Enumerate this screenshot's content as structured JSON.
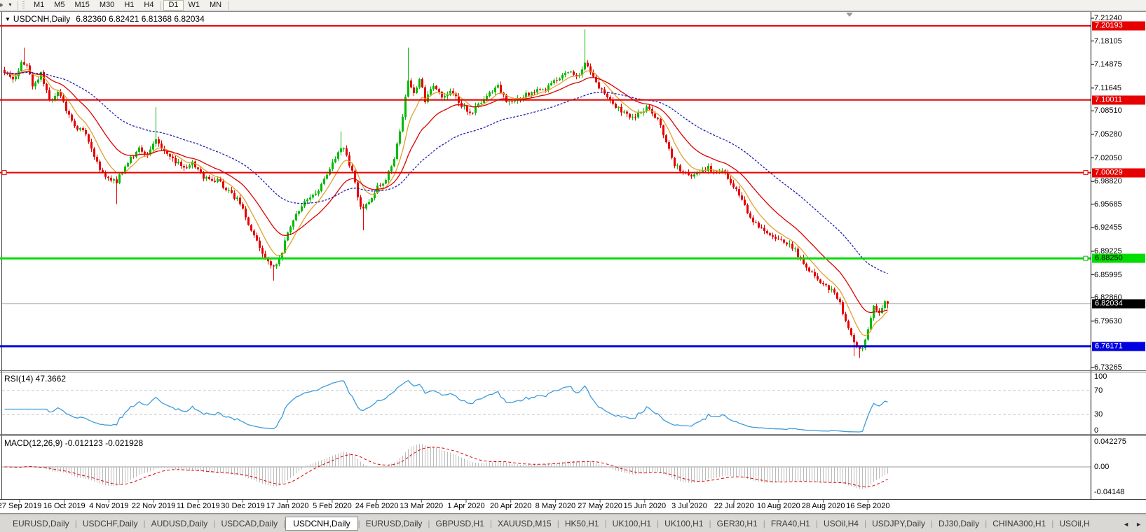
{
  "header": {
    "symbol_period": "USDCNH,Daily",
    "ohlc_text": "6.82360 6.82421 6.81368 6.82034"
  },
  "icons": {
    "collapse": "▼",
    "tool": "+",
    "dropdown": "▼",
    "scroll_left": "◄",
    "scroll_right": "►"
  },
  "toolbar": {
    "timeframes": [
      {
        "label": "M1"
      },
      {
        "label": "M5"
      },
      {
        "label": "M15"
      },
      {
        "label": "M30"
      },
      {
        "label": "H1"
      },
      {
        "label": "H4",
        "sep_after": true
      },
      {
        "label": "D1",
        "active": true
      },
      {
        "label": "W1"
      },
      {
        "label": "MN",
        "sep_after": true
      }
    ]
  },
  "tabs": {
    "active_index": 4,
    "items": [
      "EURUSD,Daily",
      "USDCHF,Daily",
      "AUDUSD,Daily",
      "USDCAD,Daily",
      "USDCNH,Daily",
      "EURUSD,Daily",
      "GBPUSD,H1",
      "XAUUSD,M15",
      "HK50,H1",
      "UK100,H1",
      "UK100,H1",
      "GER30,H1",
      "FRA40,H1",
      "USOil,H4",
      "USDJPY,Daily",
      "DJ30,Daily",
      "CHINA300,H1",
      "USOil,H"
    ]
  },
  "chart_data": {
    "type": "candlestick",
    "symbol": "USDCNH",
    "timeframe": "Daily",
    "ohlc": {
      "open": 6.8236,
      "high": 6.82421,
      "low": 6.81368,
      "close": 6.82034
    },
    "y_axis_ticks": [
      "7.21240",
      "7.18105",
      "7.14875",
      "7.11645",
      "7.08510",
      "7.05280",
      "7.02050",
      "6.98820",
      "6.95685",
      "6.92455",
      "6.89225",
      "6.85995",
      "6.82860",
      "6.79630",
      "6.73265"
    ],
    "x_axis_dates": [
      "27 Sep 2019",
      "16 Oct 2019",
      "4 Nov 2019",
      "22 Nov 2019",
      "11 Dec 2019",
      "30 Dec 2019",
      "17 Jan 2020",
      "5 Feb 2020",
      "24 Feb 2020",
      "13 Mar 2020",
      "1 Apr 2020",
      "20 Apr 2020",
      "8 May 2020",
      "27 May 2020",
      "15 Jun 2020",
      "3 Jul 2020",
      "22 Jul 2020",
      "10 Aug 2020",
      "28 Aug 2020",
      "16 Sep 2020"
    ],
    "price_lines": [
      {
        "value": "7.20193",
        "color": "#e60000",
        "text_color": "#ffffff",
        "width": 2,
        "handles": false
      },
      {
        "value": "7.10011",
        "color": "#e60000",
        "text_color": "#ffffff",
        "width": 2,
        "handles": false
      },
      {
        "value": "7.00029",
        "color": "#e60000",
        "text_color": "#ffffff",
        "width": 2,
        "handles": true
      },
      {
        "value": "6.88250",
        "color": "#00dd00",
        "text_color": "#000000",
        "width": 3,
        "handles": true
      },
      {
        "value": "6.76171",
        "color": "#0000e0",
        "text_color": "#ffffff",
        "width": 3,
        "handles": false
      }
    ],
    "current_price": {
      "value": "6.82034",
      "line_color": "#b0b0b0",
      "box_bg": "#000000",
      "box_fg": "#ffffff"
    },
    "colors": {
      "bull": "#00bb00",
      "bear": "#e60000",
      "ma_fast": "#e0a030",
      "ma_mid": "#dd0000",
      "ma_slow": "#2020b0",
      "rsi_line": "#3e9cdb",
      "macd_hist": "#bbbbbb",
      "macd_signal": "#dd0000"
    },
    "moving_averages": [
      {
        "name": "fast",
        "period": 8
      },
      {
        "name": "mid",
        "period": 21
      },
      {
        "name": "slow",
        "period": 55
      }
    ],
    "indicators": {
      "rsi": {
        "label": "RSI(14) 47.3662",
        "period": 14,
        "value": "47.3662",
        "levels": [
          "100",
          "70",
          "30",
          "0"
        ],
        "level_values": [
          100,
          70,
          30,
          0
        ]
      },
      "macd": {
        "label": "MACD(12,26,9) -0.012123 -0.021928",
        "value_main": "-0.012123",
        "value_signal": "-0.021928",
        "axis": [
          "0.042275",
          "0.00",
          "-0.04148"
        ],
        "axis_values": [
          0.042275,
          0,
          -0.04148
        ]
      }
    },
    "series_anchors": [
      [
        0,
        7.14
      ],
      [
        3,
        7.125
      ],
      [
        6,
        7.15
      ],
      [
        8,
        7.148
      ],
      [
        10,
        7.12
      ],
      [
        13,
        7.135
      ],
      [
        16,
        7.1
      ],
      [
        19,
        7.112
      ],
      [
        22,
        7.088
      ],
      [
        25,
        7.062
      ],
      [
        28,
        7.058
      ],
      [
        31,
        7.035
      ],
      [
        34,
        7.005
      ],
      [
        37,
        6.992
      ],
      [
        40,
        6.988
      ],
      [
        43,
        7.008
      ],
      [
        46,
        7.025
      ],
      [
        48,
        7.035
      ],
      [
        51,
        7.026
      ],
      [
        54,
        7.048
      ],
      [
        57,
        7.03
      ],
      [
        60,
        7.018
      ],
      [
        64,
        7.006
      ],
      [
        67,
        7.014
      ],
      [
        70,
        6.998
      ],
      [
        73,
        6.99
      ],
      [
        76,
        6.988
      ],
      [
        80,
        6.975
      ],
      [
        83,
        6.963
      ],
      [
        86,
        6.94
      ],
      [
        89,
        6.913
      ],
      [
        92,
        6.888
      ],
      [
        95,
        6.87
      ],
      [
        98,
        6.88
      ],
      [
        101,
        6.918
      ],
      [
        104,
        6.945
      ],
      [
        107,
        6.958
      ],
      [
        110,
        6.97
      ],
      [
        113,
        6.982
      ],
      [
        116,
        7.008
      ],
      [
        119,
        7.028
      ],
      [
        121,
        7.035
      ],
      [
        124,
        7.002
      ],
      [
        127,
        6.95
      ],
      [
        130,
        6.962
      ],
      [
        133,
        6.98
      ],
      [
        136,
        6.992
      ],
      [
        139,
        7.02
      ],
      [
        142,
        7.08
      ],
      [
        144,
        7.13
      ],
      [
        146,
        7.108
      ],
      [
        148,
        7.128
      ],
      [
        150,
        7.1
      ],
      [
        153,
        7.118
      ],
      [
        156,
        7.105
      ],
      [
        160,
        7.112
      ],
      [
        163,
        7.092
      ],
      [
        166,
        7.082
      ],
      [
        169,
        7.092
      ],
      [
        172,
        7.104
      ],
      [
        176,
        7.118
      ],
      [
        179,
        7.1
      ],
      [
        182,
        7.098
      ],
      [
        185,
        7.106
      ],
      [
        188,
        7.11
      ],
      [
        192,
        7.114
      ],
      [
        195,
        7.122
      ],
      [
        198,
        7.132
      ],
      [
        201,
        7.14
      ],
      [
        204,
        7.13
      ],
      [
        207,
        7.152
      ],
      [
        209,
        7.14
      ],
      [
        212,
        7.118
      ],
      [
        215,
        7.105
      ],
      [
        218,
        7.092
      ],
      [
        221,
        7.082
      ],
      [
        224,
        7.076
      ],
      [
        227,
        7.086
      ],
      [
        230,
        7.09
      ],
      [
        233,
        7.072
      ],
      [
        236,
        7.045
      ],
      [
        239,
        7.012
      ],
      [
        242,
        7.0
      ],
      [
        245,
        6.996
      ],
      [
        248,
        7.0
      ],
      [
        251,
        7.006
      ],
      [
        254,
        7.002
      ],
      [
        257,
        7.0
      ],
      [
        260,
        6.982
      ],
      [
        263,
        6.96
      ],
      [
        266,
        6.94
      ],
      [
        269,
        6.926
      ],
      [
        272,
        6.918
      ],
      [
        275,
        6.912
      ],
      [
        278,
        6.905
      ],
      [
        281,
        6.898
      ],
      [
        284,
        6.882
      ],
      [
        287,
        6.865
      ],
      [
        290,
        6.852
      ],
      [
        293,
        6.846
      ],
      [
        296,
        6.832
      ],
      [
        298,
        6.82
      ],
      [
        300,
        6.796
      ],
      [
        302,
        6.775
      ],
      [
        304,
        6.765
      ],
      [
        306,
        6.757
      ],
      [
        308,
        6.788
      ],
      [
        310,
        6.815
      ],
      [
        312,
        6.806
      ],
      [
        314,
        6.8236
      ],
      [
        315,
        6.82034
      ]
    ],
    "series_spikes": [
      [
        7,
        "h",
        7.172
      ],
      [
        40,
        "l",
        6.957
      ],
      [
        54,
        "h",
        7.09
      ],
      [
        96,
        "l",
        6.852
      ],
      [
        120,
        "h",
        7.057
      ],
      [
        128,
        "l",
        6.921
      ],
      [
        144,
        "h",
        7.172
      ],
      [
        207,
        "h",
        7.197
      ],
      [
        303,
        "l",
        6.748
      ],
      [
        305,
        "l",
        6.746
      ]
    ]
  }
}
